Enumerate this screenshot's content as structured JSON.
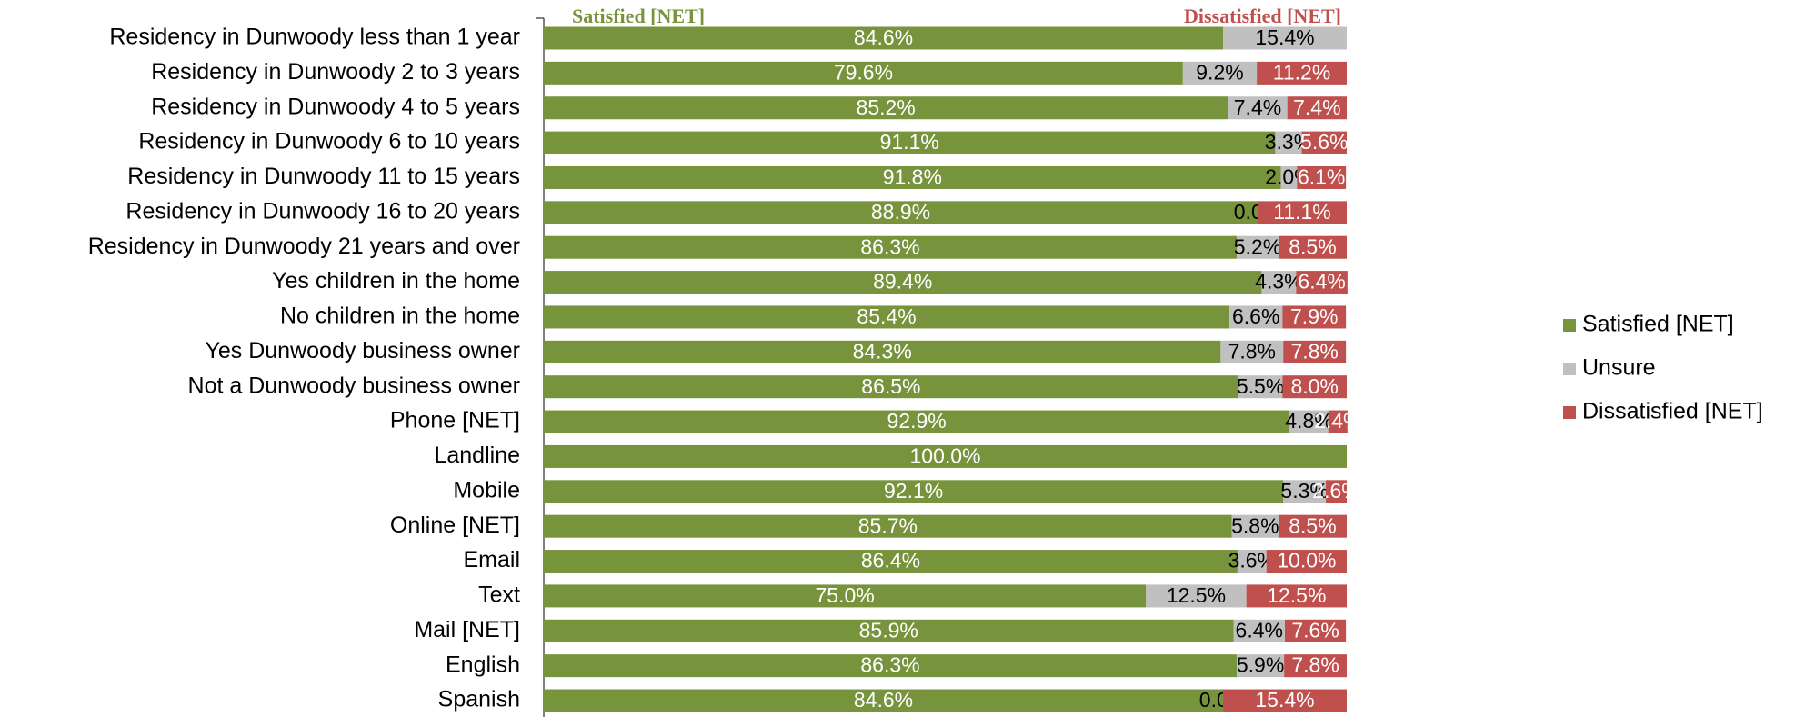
{
  "chart_data": {
    "type": "stacked_bar_horizontal",
    "annotations": [
      "Satisfied [NET]",
      "Dissatisfied [NET]"
    ],
    "categories": [
      "Residency in Dunwoody less than 1 year",
      "Residency in Dunwoody 2 to 3 years",
      "Residency in Dunwoody 4 to 5 years",
      "Residency in Dunwoody 6 to 10 years",
      "Residency in Dunwoody 11 to 15 years",
      "Residency in Dunwoody 16 to 20 years",
      "Residency in Dunwoody 21 years and over",
      "Yes children in the home",
      "No children in the home",
      "Yes Dunwoody business owner",
      "Not a Dunwoody business owner",
      "Phone  [NET]",
      "Landline",
      "Mobile",
      "Online [NET]",
      "Email",
      "Text",
      "Mail [NET]",
      "English",
      "Spanish"
    ],
    "series": [
      {
        "name": "Satisfied [NET]",
        "color": "#77933c",
        "label_color": "#ffffff",
        "values": [
          84.6,
          79.6,
          85.2,
          91.1,
          91.8,
          88.9,
          86.3,
          89.4,
          85.4,
          84.3,
          86.5,
          92.9,
          100.0,
          92.1,
          85.7,
          86.4,
          75.0,
          85.9,
          86.3,
          84.6
        ],
        "value_labels": [
          "84.6%",
          "79.6%",
          "85.2%",
          "91.1%",
          "91.8%",
          "88.9%",
          "86.3%",
          "89.4%",
          "85.4%",
          "84.3%",
          "86.5%",
          "92.9%",
          "100.0%",
          "92.1%",
          "85.7%",
          "86.4%",
          "75.0%",
          "85.9%",
          "86.3%",
          "84.6%"
        ]
      },
      {
        "name": "Unsure",
        "color": "#c0c0c0",
        "label_color": "#000000",
        "values": [
          15.4,
          9.2,
          7.4,
          3.3,
          2.0,
          0.0,
          5.2,
          4.3,
          6.6,
          7.8,
          5.5,
          4.8,
          null,
          5.3,
          5.8,
          3.6,
          12.5,
          6.4,
          5.9,
          0.0
        ],
        "value_labels": [
          "15.4%",
          "9.2%",
          "7.4%",
          "3.3%",
          "2.0%",
          "0.0%",
          "5.2%",
          "4.3%",
          "6.6%",
          "7.8%",
          "5.5%",
          "4.8%",
          null,
          "5.3%",
          "5.8%",
          "3.6%",
          "12.5%",
          "6.4%",
          "5.9%",
          "0.0%"
        ]
      },
      {
        "name": "Dissatisfied [NET]",
        "color": "#c0504d",
        "label_color": "#ffffff",
        "values": [
          null,
          11.2,
          7.4,
          5.6,
          6.1,
          11.1,
          8.5,
          6.4,
          7.9,
          7.8,
          8.0,
          2.4,
          null,
          2.6,
          8.5,
          10.0,
          12.5,
          7.6,
          7.8,
          15.4
        ],
        "value_labels": [
          null,
          "11.2%",
          "7.4%",
          "5.6%",
          "6.1%",
          "11.1%",
          "8.5%",
          "6.4%",
          "7.9%",
          "7.8%",
          "8.0%",
          "2.4%",
          null,
          "2.6%",
          "8.5%",
          "10.0%",
          "12.5%",
          "7.6%",
          "7.8%",
          "15.4%"
        ]
      }
    ],
    "xlim": [
      0,
      100
    ],
    "legend": "right"
  }
}
